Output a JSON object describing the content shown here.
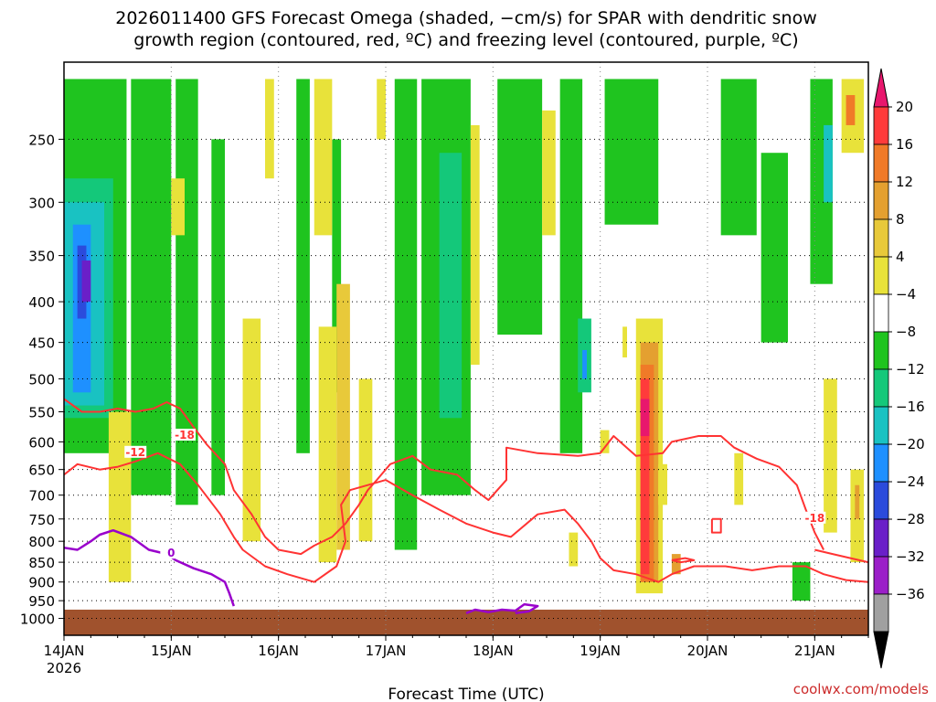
{
  "chart_data": {
    "type": "heatmap",
    "title_line1": "2026011400 GFS Forecast Omega (shaded, −cm/s) for SPAR with dendritic snow",
    "title_line2": "growth region (contoured, red, ºC) and freezing level (contoured, purple, ºC)",
    "xlabel": "Forecast Time (UTC)",
    "ylabel": "",
    "credit": "coolwx.com/models",
    "x_hours_range": [
      0,
      180
    ],
    "y_pressure_range": [
      1050,
      200
    ],
    "y_ticks": [
      250,
      300,
      350,
      400,
      450,
      500,
      550,
      600,
      650,
      700,
      750,
      800,
      850,
      900,
      950,
      1000
    ],
    "x_ticks": [
      {
        "hour": 0,
        "label": "14JAN",
        "sub": "2026"
      },
      {
        "hour": 24,
        "label": "15JAN",
        "sub": ""
      },
      {
        "hour": 48,
        "label": "16JAN",
        "sub": ""
      },
      {
        "hour": 72,
        "label": "17JAN",
        "sub": ""
      },
      {
        "hour": 96,
        "label": "18JAN",
        "sub": ""
      },
      {
        "hour": 120,
        "label": "19JAN",
        "sub": ""
      },
      {
        "hour": 144,
        "label": "20JAN",
        "sub": ""
      },
      {
        "hour": 168,
        "label": "21JAN",
        "sub": ""
      }
    ],
    "colorbar": {
      "labels": [
        "20",
        "16",
        "12",
        "8",
        "4",
        "−4",
        "−8",
        "−12",
        "−16",
        "−20",
        "−24",
        "−28",
        "−32",
        "−36"
      ],
      "colors": [
        "#ff3b3b",
        "#f07a28",
        "#e4a030",
        "#e8c93a",
        "#e8e23a",
        "#ffffff",
        "#1fc41f",
        "#14c87a",
        "#19c2c2",
        "#1e90ff",
        "#2b4bdc",
        "#6a1fc8",
        "#9b1fc8",
        "#a0a0a0"
      ],
      "top_cap": "#e8176d",
      "bottom_cap": "#000000"
    },
    "ground_color": "#a0522d",
    "shading": [
      {
        "h0": 0,
        "h1": 14,
        "p0": 210,
        "p1": 620,
        "color": "#1fc41f"
      },
      {
        "h0": 0,
        "h1": 11,
        "p0": 280,
        "p1": 560,
        "color": "#14c87a"
      },
      {
        "h0": 0,
        "h1": 9,
        "p0": 300,
        "p1": 540,
        "color": "#19c2c2"
      },
      {
        "h0": 2,
        "h1": 6,
        "p0": 320,
        "p1": 520,
        "color": "#1e90ff"
      },
      {
        "h0": 3,
        "h1": 5,
        "p0": 340,
        "p1": 420,
        "color": "#2b4bdc"
      },
      {
        "h0": 4,
        "h1": 6,
        "p0": 355,
        "p1": 400,
        "color": "#6a1fc8"
      },
      {
        "h0": 15,
        "h1": 24,
        "p0": 210,
        "p1": 700,
        "color": "#1fc41f"
      },
      {
        "h0": 25,
        "h1": 30,
        "p0": 210,
        "p1": 720,
        "color": "#1fc41f"
      },
      {
        "h0": 33,
        "h1": 36,
        "p0": 250,
        "p1": 700,
        "color": "#1fc41f"
      },
      {
        "h0": 52,
        "h1": 55,
        "p0": 210,
        "p1": 620,
        "color": "#1fc41f"
      },
      {
        "h0": 60,
        "h1": 62,
        "p0": 250,
        "p1": 520,
        "color": "#1fc41f"
      },
      {
        "h0": 74,
        "h1": 79,
        "p0": 210,
        "p1": 820,
        "color": "#1fc41f"
      },
      {
        "h0": 80,
        "h1": 91,
        "p0": 210,
        "p1": 700,
        "color": "#1fc41f"
      },
      {
        "h0": 84,
        "h1": 89,
        "p0": 260,
        "p1": 560,
        "color": "#14c87a"
      },
      {
        "h0": 97,
        "h1": 107,
        "p0": 210,
        "p1": 440,
        "color": "#1fc41f"
      },
      {
        "h0": 111,
        "h1": 116,
        "p0": 210,
        "p1": 620,
        "color": "#1fc41f"
      },
      {
        "h0": 115,
        "h1": 118,
        "p0": 420,
        "p1": 520,
        "color": "#14c87a"
      },
      {
        "h0": 116,
        "h1": 117,
        "p0": 460,
        "p1": 500,
        "color": "#1e90ff"
      },
      {
        "h0": 121,
        "h1": 133,
        "p0": 210,
        "p1": 320,
        "color": "#1fc41f"
      },
      {
        "h0": 147,
        "h1": 155,
        "p0": 210,
        "p1": 330,
        "color": "#1fc41f"
      },
      {
        "h0": 156,
        "h1": 162,
        "p0": 260,
        "p1": 450,
        "color": "#1fc41f"
      },
      {
        "h0": 167,
        "h1": 172,
        "p0": 210,
        "p1": 380,
        "color": "#1fc41f"
      },
      {
        "h0": 170,
        "h1": 172,
        "p0": 240,
        "p1": 300,
        "color": "#19c2c2"
      },
      {
        "h0": 163,
        "h1": 167,
        "p0": 850,
        "p1": 950,
        "color": "#1fc41f"
      },
      {
        "h0": 10,
        "h1": 15,
        "p0": 550,
        "p1": 900,
        "color": "#e8e23a"
      },
      {
        "h0": 24,
        "h1": 27,
        "p0": 280,
        "p1": 330,
        "color": "#e8e23a"
      },
      {
        "h0": 40,
        "h1": 44,
        "p0": 420,
        "p1": 800,
        "color": "#e8e23a"
      },
      {
        "h0": 45,
        "h1": 47,
        "p0": 210,
        "p1": 280,
        "color": "#e8e23a"
      },
      {
        "h0": 56,
        "h1": 60,
        "p0": 210,
        "p1": 330,
        "color": "#e8e23a"
      },
      {
        "h0": 57,
        "h1": 61,
        "p0": 430,
        "p1": 850,
        "color": "#e8e23a"
      },
      {
        "h0": 61,
        "h1": 64,
        "p0": 380,
        "p1": 820,
        "color": "#e8c93a"
      },
      {
        "h0": 66,
        "h1": 69,
        "p0": 500,
        "p1": 800,
        "color": "#e8e23a"
      },
      {
        "h0": 70,
        "h1": 72,
        "p0": 210,
        "p1": 250,
        "color": "#e8e23a"
      },
      {
        "h0": 91,
        "h1": 93,
        "p0": 240,
        "p1": 480,
        "color": "#e8e23a"
      },
      {
        "h0": 107,
        "h1": 110,
        "p0": 230,
        "p1": 330,
        "color": "#e8e23a"
      },
      {
        "h0": 113,
        "h1": 115,
        "p0": 780,
        "p1": 860,
        "color": "#e8e23a"
      },
      {
        "h0": 120,
        "h1": 122,
        "p0": 580,
        "p1": 620,
        "color": "#e8e23a"
      },
      {
        "h0": 125,
        "h1": 126,
        "p0": 430,
        "p1": 470,
        "color": "#e8e23a"
      },
      {
        "h0": 128,
        "h1": 134,
        "p0": 420,
        "p1": 930,
        "color": "#e8e23a"
      },
      {
        "h0": 129,
        "h1": 133,
        "p0": 450,
        "p1": 900,
        "color": "#e4a030"
      },
      {
        "h0": 129,
        "h1": 132,
        "p0": 480,
        "p1": 900,
        "color": "#f07a28"
      },
      {
        "h0": 129,
        "h1": 131,
        "p0": 500,
        "p1": 880,
        "color": "#ff3b3b"
      },
      {
        "h0": 129,
        "h1": 131,
        "p0": 530,
        "p1": 590,
        "color": "#e8176d"
      },
      {
        "h0": 133,
        "h1": 135,
        "p0": 640,
        "p1": 720,
        "color": "#e8e23a"
      },
      {
        "h0": 136,
        "h1": 138,
        "p0": 830,
        "p1": 880,
        "color": "#e4a030"
      },
      {
        "h0": 150,
        "h1": 152,
        "p0": 620,
        "p1": 720,
        "color": "#e8e23a"
      },
      {
        "h0": 170,
        "h1": 173,
        "p0": 500,
        "p1": 780,
        "color": "#e8e23a"
      },
      {
        "h0": 174,
        "h1": 179,
        "p0": 210,
        "p1": 260,
        "color": "#e8e23a"
      },
      {
        "h0": 175,
        "h1": 177,
        "p0": 220,
        "p1": 240,
        "color": "#f07a28"
      },
      {
        "h0": 176,
        "h1": 179,
        "p0": 650,
        "p1": 850,
        "color": "#e8e23a"
      },
      {
        "h0": 177,
        "h1": 178,
        "p0": 680,
        "p1": 750,
        "color": "#e4a030"
      }
    ],
    "red_contours": [
      {
        "label": "-18",
        "label_at": [
          27,
          590
        ],
        "points": [
          [
            0,
            530
          ],
          [
            4,
            550
          ],
          [
            8,
            550
          ],
          [
            12,
            545
          ],
          [
            16,
            550
          ],
          [
            20,
            545
          ],
          [
            23,
            535
          ],
          [
            26,
            545
          ],
          [
            29,
            575
          ],
          [
            32,
            605
          ],
          [
            36,
            640
          ],
          [
            38,
            690
          ],
          [
            42,
            740
          ],
          [
            45,
            790
          ],
          [
            48,
            820
          ],
          [
            53,
            830
          ],
          [
            56,
            810
          ],
          [
            60,
            790
          ],
          [
            63,
            760
          ],
          [
            66,
            720
          ],
          [
            68,
            690
          ],
          [
            70,
            670
          ],
          [
            73,
            640
          ],
          [
            78,
            625
          ],
          [
            82,
            650
          ],
          [
            88,
            660
          ],
          [
            92,
            690
          ],
          [
            95,
            710
          ],
          [
            99,
            670
          ],
          [
            99,
            610
          ],
          [
            106,
            620
          ],
          [
            115,
            625
          ],
          [
            120,
            620
          ],
          [
            123,
            590
          ],
          [
            128,
            625
          ],
          [
            134,
            620
          ],
          [
            136,
            600
          ],
          [
            142,
            590
          ],
          [
            147,
            590
          ],
          [
            150,
            610
          ],
          [
            155,
            630
          ],
          [
            160,
            645
          ],
          [
            164,
            680
          ],
          [
            166,
            730
          ],
          [
            168,
            780
          ],
          [
            170,
            820
          ]
        ]
      },
      {
        "label": "-12",
        "label_at": [
          16,
          620
        ],
        "points": [
          [
            0,
            660
          ],
          [
            3,
            640
          ],
          [
            8,
            650
          ],
          [
            12,
            645
          ],
          [
            16,
            635
          ],
          [
            21,
            620
          ],
          [
            26,
            640
          ],
          [
            30,
            680
          ],
          [
            35,
            740
          ],
          [
            38,
            790
          ],
          [
            40,
            820
          ],
          [
            45,
            860
          ],
          [
            50,
            880
          ],
          [
            56,
            900
          ],
          [
            61,
            860
          ],
          [
            63,
            800
          ],
          [
            62,
            720
          ],
          [
            64,
            690
          ],
          [
            68,
            680
          ],
          [
            72,
            670
          ],
          [
            78,
            700
          ],
          [
            84,
            730
          ],
          [
            90,
            760
          ],
          [
            96,
            780
          ],
          [
            100,
            790
          ],
          [
            106,
            740
          ],
          [
            112,
            730
          ],
          [
            115,
            760
          ],
          [
            118,
            800
          ],
          [
            120,
            840
          ],
          [
            123,
            870
          ],
          [
            128,
            880
          ],
          [
            133,
            900
          ],
          [
            136,
            880
          ],
          [
            141,
            860
          ],
          [
            148,
            860
          ],
          [
            154,
            870
          ],
          [
            160,
            860
          ],
          [
            166,
            860
          ],
          [
            170,
            880
          ],
          [
            175,
            895
          ],
          [
            180,
            900
          ]
        ]
      },
      {
        "label": "-18",
        "label_at": [
          168,
          750
        ],
        "points": [
          [
            168,
            820
          ],
          [
            172,
            830
          ],
          [
            176,
            840
          ],
          [
            180,
            850
          ]
        ]
      },
      {
        "label": "",
        "label_at": [
          0,
          0
        ],
        "points": [
          [
            145,
            750
          ],
          [
            147,
            750
          ],
          [
            147,
            780
          ],
          [
            145,
            780
          ],
          [
            145,
            750
          ]
        ]
      },
      {
        "label": "",
        "label_at": [
          0,
          0
        ],
        "points": [
          [
            136,
            845
          ],
          [
            139,
            840
          ],
          [
            141,
            845
          ],
          [
            138,
            850
          ],
          [
            136,
            845
          ]
        ]
      }
    ],
    "freezing_contours": [
      {
        "label": "0",
        "label_at": [
          24,
          830
        ],
        "points": [
          [
            0,
            815
          ],
          [
            3,
            820
          ],
          [
            6,
            800
          ],
          [
            8,
            785
          ],
          [
            11,
            775
          ],
          [
            15,
            790
          ],
          [
            19,
            820
          ],
          [
            23,
            830
          ],
          [
            25,
            845
          ],
          [
            29,
            865
          ],
          [
            33,
            880
          ],
          [
            36,
            900
          ],
          [
            37,
            930
          ],
          [
            38,
            965
          ]
        ]
      },
      {
        "label": "",
        "label_at": [
          0,
          0
        ],
        "points": [
          [
            90,
            985
          ],
          [
            92,
            975
          ],
          [
            95,
            982
          ],
          [
            98,
            975
          ],
          [
            101,
            978
          ],
          [
            103,
            960
          ],
          [
            106,
            965
          ],
          [
            104,
            980
          ],
          [
            101,
            985
          ]
        ]
      }
    ]
  }
}
